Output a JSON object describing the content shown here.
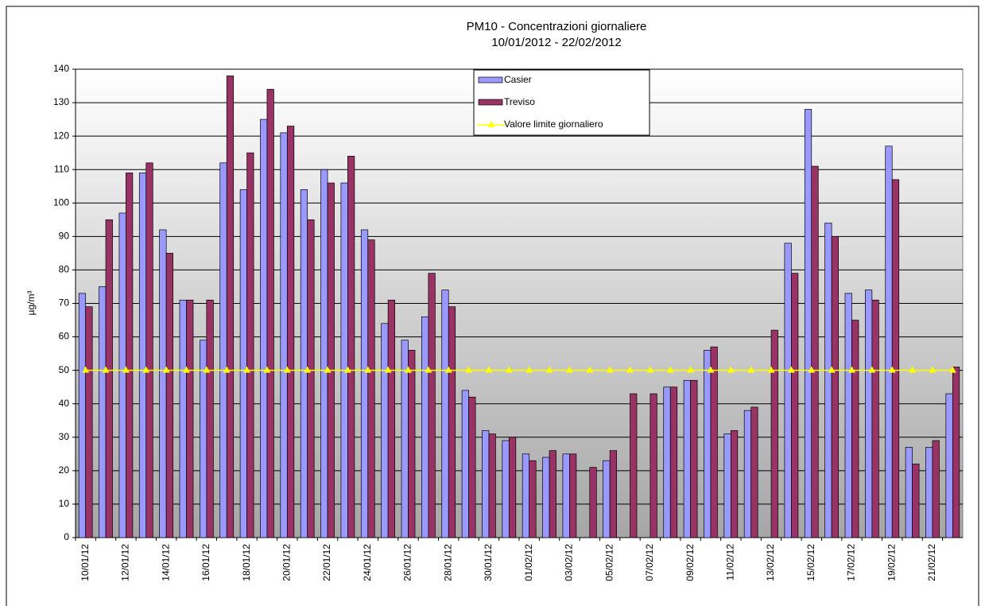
{
  "chart_data": {
    "type": "bar",
    "title": "PM10 - Concentrazioni giornaliere",
    "subtitle": "10/01/2012 - 22/02/2012",
    "y_label": "µg/m³",
    "categories": [
      "10/01/12",
      null,
      "12/01/12",
      null,
      "14/01/12",
      null,
      "16/01/12",
      null,
      "18/01/12",
      null,
      "20/01/12",
      null,
      "22/01/12",
      null,
      "24/01/12",
      null,
      "26/01/12",
      null,
      "28/01/12",
      null,
      "30/01/12",
      null,
      "01/02/12",
      null,
      "03/02/12",
      null,
      "05/02/12",
      null,
      "07/02/12",
      null,
      "09/02/12",
      null,
      "11/02/12",
      null,
      "13/02/12",
      null,
      "15/02/12",
      null,
      "17/02/12",
      null,
      "19/02/12",
      null,
      "21/02/12",
      null
    ],
    "series": [
      {
        "name": "Casier",
        "color": "#9999ff",
        "values": [
          73,
          75,
          97,
          109,
          92,
          71,
          59,
          112,
          104,
          125,
          121,
          104,
          110,
          106,
          92,
          64,
          59,
          66,
          74,
          44,
          32,
          29,
          25,
          24,
          25,
          null,
          23,
          null,
          null,
          45,
          47,
          56,
          31,
          38,
          null,
          88,
          128,
          94,
          73,
          74,
          117,
          27,
          27,
          43
        ]
      },
      {
        "name": "Treviso",
        "color": "#993366",
        "values": [
          69,
          95,
          109,
          112,
          85,
          71,
          71,
          138,
          115,
          134,
          123,
          95,
          106,
          114,
          89,
          71,
          56,
          79,
          69,
          42,
          31,
          30,
          23,
          26,
          25,
          21,
          26,
          43,
          43,
          45,
          47,
          57,
          32,
          39,
          62,
          79,
          111,
          90,
          65,
          71,
          107,
          22,
          29,
          51
        ]
      },
      {
        "name": "Valore limite giornaliero",
        "type": "line",
        "color": "#ffff00",
        "values": [
          50,
          50,
          50,
          50,
          50,
          50,
          50,
          50,
          50,
          50,
          50,
          50,
          50,
          50,
          50,
          50,
          50,
          50,
          50,
          50,
          50,
          50,
          50,
          50,
          50,
          50,
          50,
          50,
          50,
          50,
          50,
          50,
          50,
          50,
          50,
          50,
          50,
          50,
          50,
          50,
          50,
          50,
          50,
          50
        ]
      }
    ],
    "ylim": [
      0,
      140
    ],
    "yticks": [
      0,
      10,
      20,
      30,
      40,
      50,
      60,
      70,
      80,
      90,
      100,
      110,
      120,
      130,
      140
    ],
    "grid": true,
    "legend": "top"
  }
}
